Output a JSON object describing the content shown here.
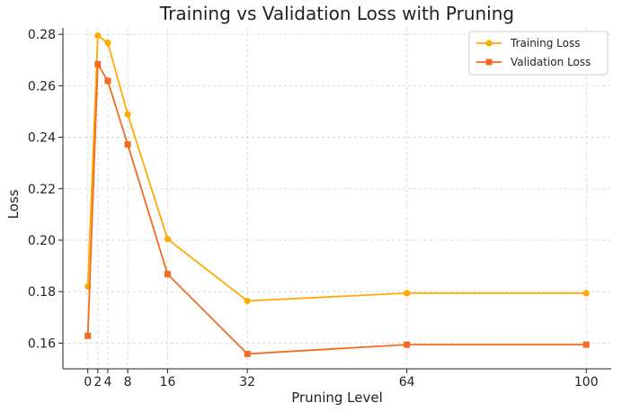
{
  "chart_data": {
    "type": "line",
    "title": "Training vs Validation Loss with Pruning",
    "xlabel": "Pruning Level",
    "ylabel": "Loss",
    "x": [
      0,
      2,
      4,
      8,
      16,
      32,
      64,
      100
    ],
    "x_tick_labels": [
      "0",
      "2",
      "4",
      "8",
      "16",
      "32",
      "64",
      "100"
    ],
    "y_tick_values": [
      0.16,
      0.18,
      0.2,
      0.22,
      0.24,
      0.26,
      0.28
    ],
    "y_tick_labels": [
      "0.16",
      "0.18",
      "0.20",
      "0.22",
      "0.24",
      "0.26",
      "0.28"
    ],
    "xlim": [
      -5,
      105
    ],
    "ylim": [
      0.15,
      0.2825
    ],
    "grid": true,
    "legend_position": "top-right",
    "series": [
      {
        "name": "Training Loss",
        "marker": "circle",
        "color": "#FFAA00",
        "values": [
          0.182,
          0.2795,
          0.2767,
          0.2489,
          0.2004,
          0.1764,
          0.1794,
          0.1794
        ]
      },
      {
        "name": "Validation Loss",
        "marker": "square",
        "color": "#F26B21",
        "values": [
          0.1628,
          0.2684,
          0.2619,
          0.2372,
          0.1868,
          0.1558,
          0.1594,
          0.1594
        ]
      }
    ]
  }
}
